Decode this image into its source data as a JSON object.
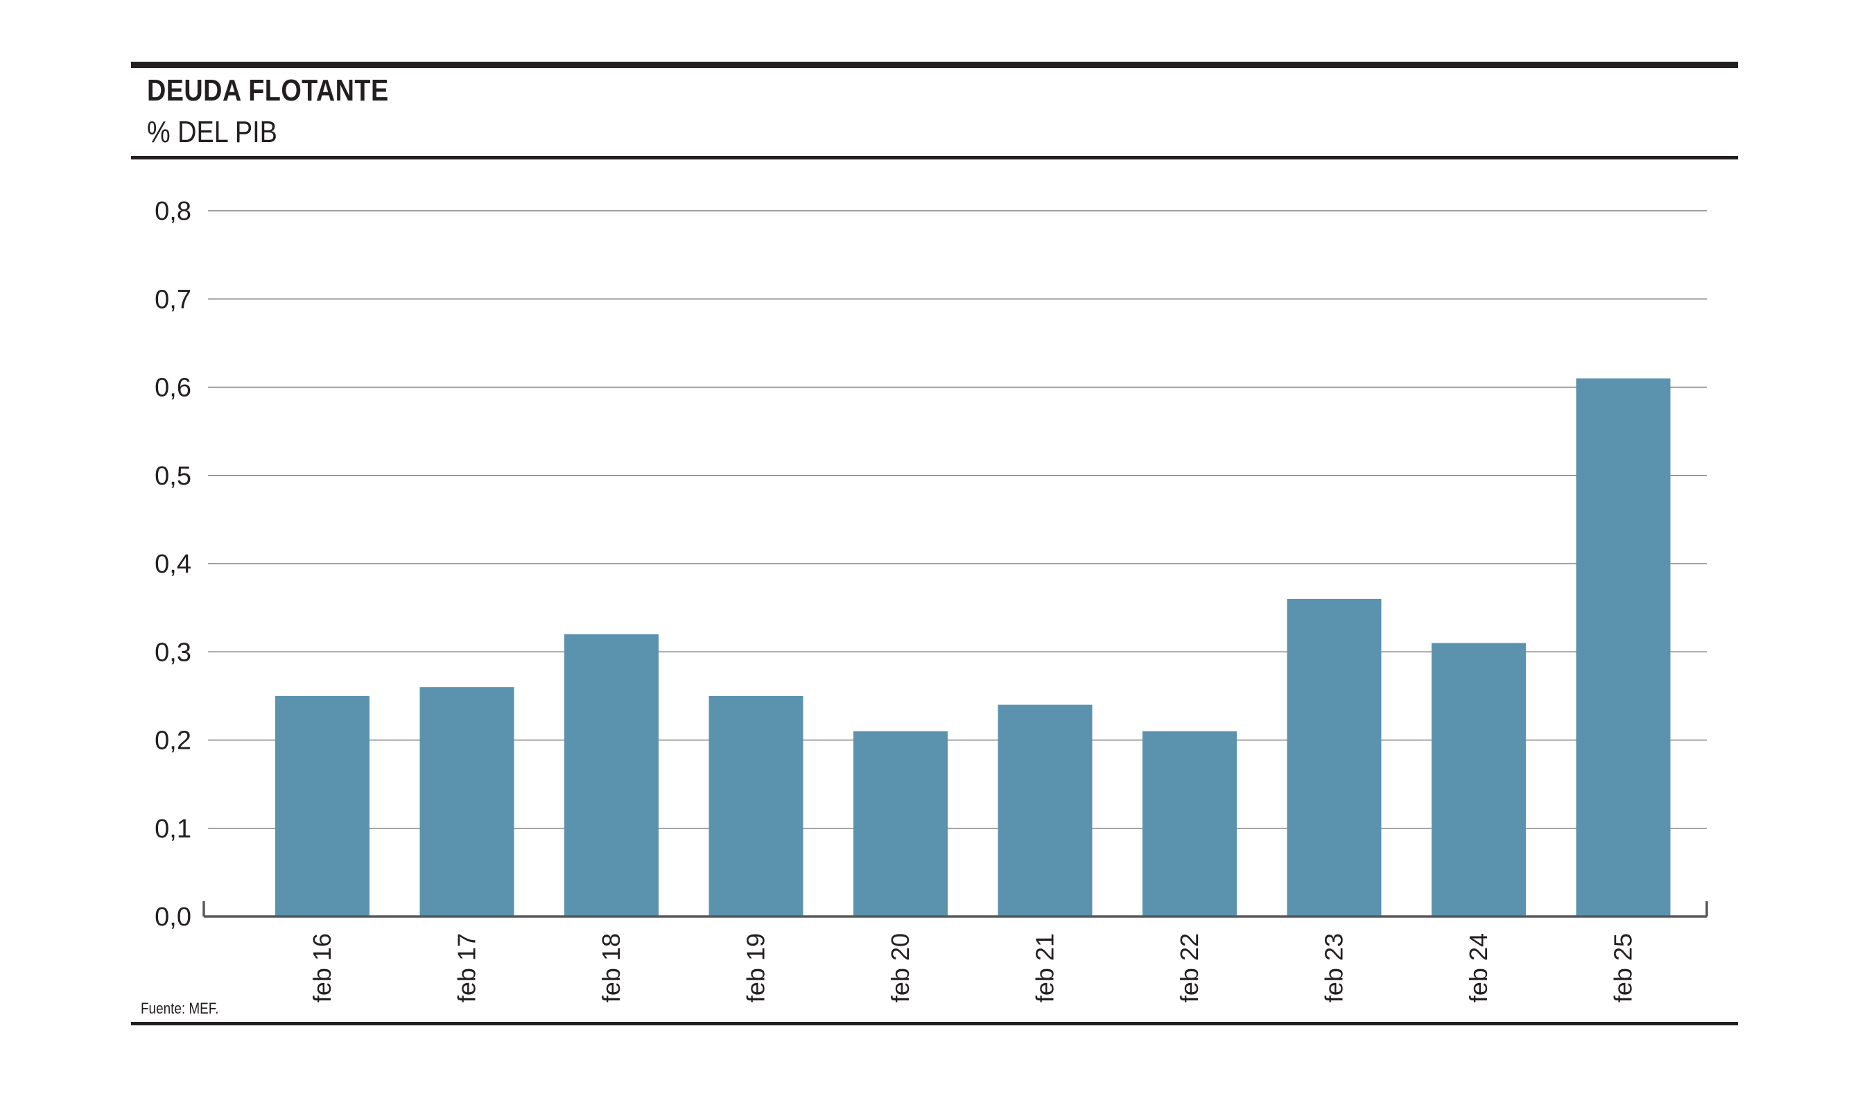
{
  "header": {
    "title": "DEUDA FLOTANTE",
    "subtitle": "% DEL PIB"
  },
  "footer": {
    "source": "Fuente: MEF."
  },
  "colors": {
    "bar": "#5b93ae",
    "grid": "#808080",
    "axis": "#58595b",
    "rule": "#231f20",
    "text": "#231f20"
  },
  "chart_data": {
    "type": "bar",
    "title": "DEUDA FLOTANTE",
    "subtitle": "% DEL PIB",
    "xlabel": "",
    "ylabel": "",
    "categories": [
      "feb 16",
      "feb 17",
      "feb 18",
      "feb 19",
      "feb 20",
      "feb 21",
      "feb 22",
      "feb 23",
      "feb 24",
      "feb 25"
    ],
    "values": [
      0.25,
      0.26,
      0.32,
      0.25,
      0.21,
      0.24,
      0.21,
      0.36,
      0.31,
      0.61
    ],
    "ylim": [
      0,
      0.8
    ],
    "yticks": [
      "0,0",
      "0,1",
      "0,2",
      "0,3",
      "0,4",
      "0,5",
      "0,6",
      "0,7",
      "0,8"
    ],
    "grid": true,
    "legend": "none"
  }
}
